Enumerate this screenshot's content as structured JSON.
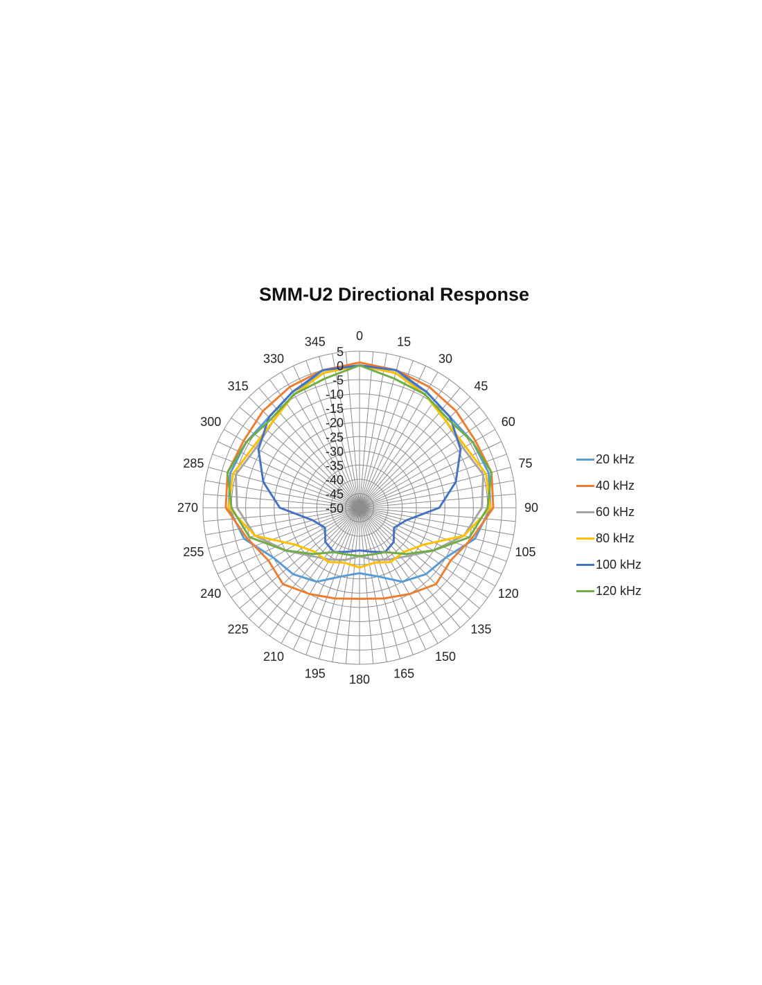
{
  "chart_data": {
    "type": "polar-line",
    "title": "SMM-U2 Directional Response",
    "angle_ticks": [
      0,
      15,
      30,
      45,
      60,
      75,
      90,
      105,
      120,
      135,
      150,
      165,
      180,
      195,
      210,
      225,
      240,
      255,
      270,
      285,
      300,
      315,
      330,
      345
    ],
    "angle_tick_labels": [
      "0",
      "15",
      "30",
      "45",
      "60",
      "75",
      "90",
      "105",
      "120",
      "135",
      "150",
      "165",
      "180",
      "195",
      "210",
      "225",
      "240",
      "255",
      "270",
      "285",
      "300",
      "315",
      "330",
      "345"
    ],
    "radial_range": [
      -50,
      5
    ],
    "radial_ticks": [
      5,
      0,
      -5,
      -10,
      -15,
      -20,
      -25,
      -30,
      -35,
      -40,
      -45,
      -50
    ],
    "radial_tick_labels": [
      "5",
      "0",
      "-5",
      "-10",
      "-15",
      "-20",
      "-25",
      "-30",
      "-35",
      "-40",
      "-45",
      "-50"
    ],
    "angular_gridline_step_deg": 5,
    "grid": true,
    "legend": "right",
    "theta": [
      0,
      15,
      30,
      45,
      60,
      75,
      90,
      105,
      120,
      135,
      150,
      165,
      180,
      195,
      210,
      225,
      240,
      255,
      270,
      285,
      300,
      315,
      330,
      345,
      360
    ],
    "series": [
      {
        "name": "20 kHz",
        "color": "#5B9BD5",
        "values": [
          0,
          -1,
          -3,
          -5,
          -4,
          -3,
          -4,
          -8,
          -15,
          -17,
          -20,
          -25,
          -27,
          -25,
          -20,
          -17,
          -15,
          -8,
          -4,
          -3,
          -4,
          -5,
          -3,
          -1,
          0
        ]
      },
      {
        "name": "40 kHz",
        "color": "#ED7D31",
        "values": [
          1,
          0,
          -1,
          -2,
          -3,
          -2,
          -3,
          -9,
          -13,
          -12,
          -15,
          -17,
          -18,
          -17,
          -15,
          -12,
          -13,
          -9,
          -3,
          -2,
          -3,
          -2,
          -1,
          0,
          1
        ]
      },
      {
        "name": "60 kHz",
        "color": "#A5A5A5",
        "values": [
          0,
          -1,
          -4,
          -7,
          -8,
          -5,
          -7,
          -12,
          -20,
          -26,
          -29,
          -31,
          -33,
          -31,
          -29,
          -26,
          -20,
          -12,
          -7,
          -5,
          -8,
          -7,
          -4,
          -1,
          0
        ]
      },
      {
        "name": "80 kHz",
        "color": "#FFC000",
        "values": [
          0,
          -1,
          -4,
          -7,
          -7,
          -4,
          -4,
          -12,
          -24,
          -28,
          -28,
          -30,
          -29,
          -30,
          -28,
          -28,
          -24,
          -12,
          -4,
          -4,
          -7,
          -7,
          -4,
          -1,
          0
        ]
      },
      {
        "name": "100 kHz",
        "color": "#4472C4",
        "values": [
          0,
          0,
          -3,
          -5,
          -9,
          -15,
          -22,
          -33,
          -36,
          -33,
          -32,
          -34,
          -35,
          -34,
          -32,
          -33,
          -36,
          -33,
          -22,
          -15,
          -9,
          -5,
          -3,
          0,
          0
        ]
      },
      {
        "name": "120 kHz",
        "color": "#70AD47",
        "values": [
          0,
          -3,
          -4,
          -6,
          -4,
          -2,
          -5,
          -10,
          -20,
          -27,
          -32,
          -33,
          -33,
          -33,
          -32,
          -27,
          -20,
          -10,
          -5,
          -2,
          -4,
          -6,
          -4,
          -3,
          0
        ]
      }
    ]
  }
}
